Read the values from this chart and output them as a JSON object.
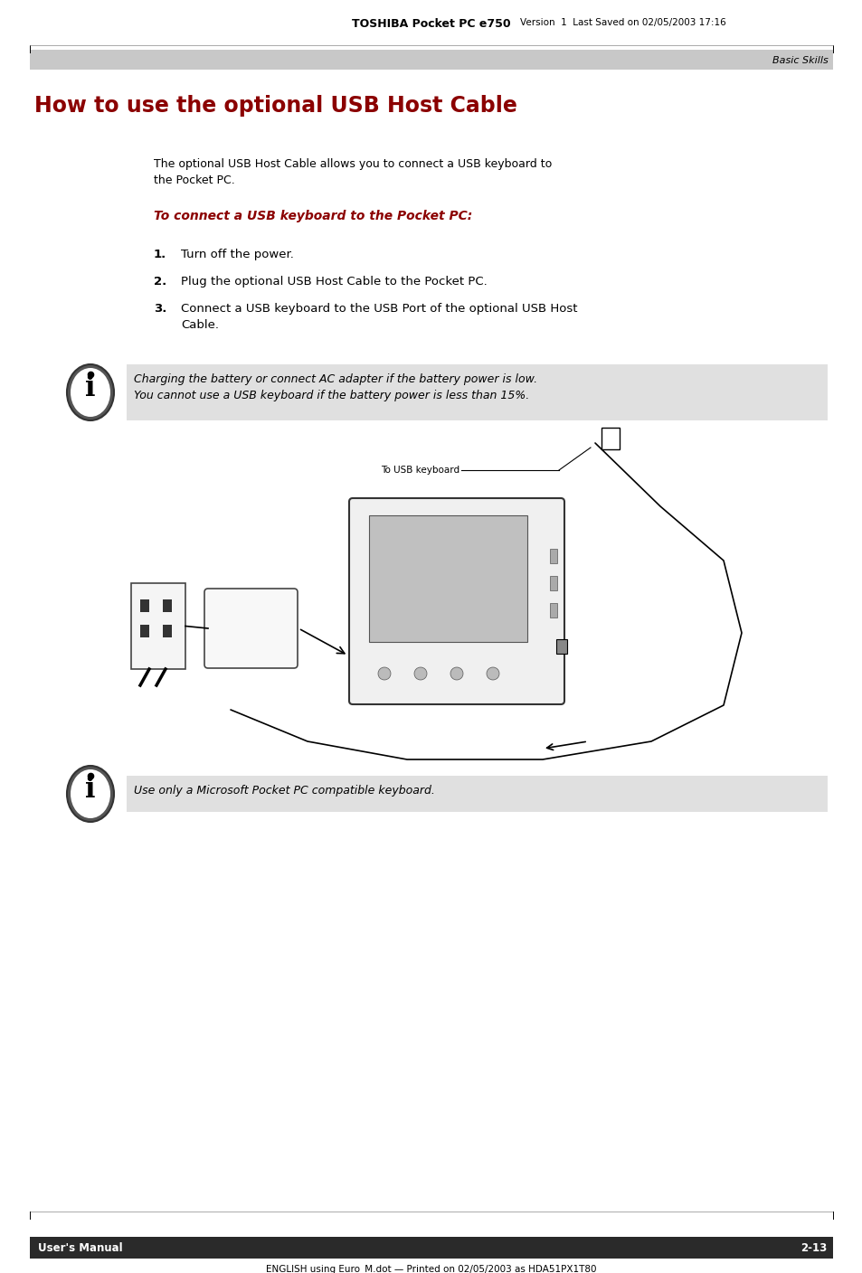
{
  "page_title_bold": "TOSHIBA Pocket PC e750",
  "page_title_normal": "Version  1  Last Saved on 02/05/2003 17:16",
  "header_label": "Basic Skills",
  "main_title": "How to use the optional USB Host Cable",
  "main_title_color": "#8B0000",
  "paragraph1_line1": "The optional USB Host Cable allows you to connect a USB keyboard to",
  "paragraph1_line2": "the Pocket PC.",
  "subheading": "To connect a USB keyboard to the Pocket PC:",
  "subheading_color": "#8B0000",
  "step1": "Turn off the power.",
  "step2": "Plug the optional USB Host Cable to the Pocket PC.",
  "step3_line1": "Connect a USB keyboard to the USB Port of the optional USB Host",
  "step3_line2": "Cable.",
  "note1_line1": "Charging the battery or connect AC adapter if the battery power is low.",
  "note1_line2": "You cannot use a USB keyboard if the battery power is less than 15%.",
  "note2_text": "Use only a Microsoft Pocket PC compatible keyboard.",
  "diagram_label": "To USB keyboard",
  "footer_left": "User's Manual",
  "footer_right": "2-13",
  "footer_bottom": "ENGLISH using Euro_M.dot — Printed on 02/05/2003 as HDA51PX1T80",
  "bg_color": "#ffffff",
  "header_bar_color": "#c8c8c8",
  "note_bg_color": "#e0e0e0",
  "footer_bar_color": "#2a2a2a",
  "footer_text_color": "#ffffff"
}
